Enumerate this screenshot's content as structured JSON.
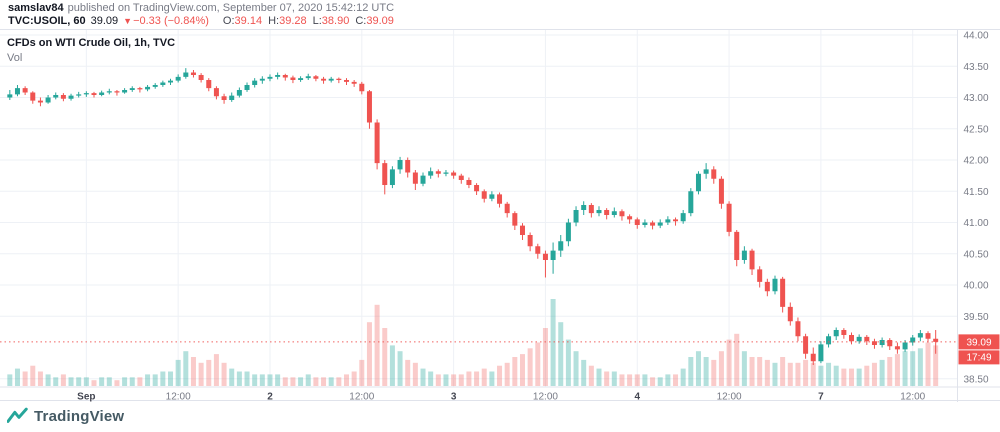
{
  "attribution": {
    "author": "samslav84",
    "published": "published on TradingView.com, September 07, 2020 15:42:12 UTC"
  },
  "quote": {
    "symbol": "TVC:USOIL, 60",
    "last": "39.09",
    "direction": "▼",
    "change": "−0.33 (−0.84%)",
    "ohlc": [
      {
        "label": "O:",
        "value": "39.14"
      },
      {
        "label": "H:",
        "value": "39.28"
      },
      {
        "label": "L:",
        "value": "38.90"
      },
      {
        "label": "C:",
        "value": "39.09"
      }
    ]
  },
  "footer": {
    "brand": "TradingView"
  },
  "colors": {
    "up": "#26a69a",
    "down": "#ef5350",
    "vol_up": "rgba(38,166,154,0.35)",
    "vol_down": "rgba(239,83,80,0.30)",
    "grid": "#eef1f6",
    "border": "#e0e3eb",
    "axis_text": "#787b86",
    "axis_text_major": "#434651",
    "badge": "#ef5350",
    "badge_text": "#ffffff",
    "current_line": "#ef5350",
    "brand_teal": "#26a69a"
  },
  "chart_data": {
    "type": "candlestick",
    "title": "CFDs on WTI Crude Oil, 1h, TVC",
    "volume_label": "Vol",
    "timeframe": "1h",
    "current_price": "39.09",
    "countdown": "17:49",
    "ylim": [
      38.37,
      44.08
    ],
    "price_axis": [
      "44.00",
      "43.50",
      "43.00",
      "42.50",
      "42.00",
      "41.50",
      "41.00",
      "40.50",
      "40.00",
      "39.50",
      "38.50"
    ],
    "x_ticks": [
      {
        "i": 10,
        "label": "Sep",
        "major": true
      },
      {
        "i": 22,
        "label": "12:00",
        "major": false
      },
      {
        "i": 34,
        "label": "2",
        "major": true
      },
      {
        "i": 46,
        "label": "12:00",
        "major": false
      },
      {
        "i": 58,
        "label": "3",
        "major": true
      },
      {
        "i": 70,
        "label": "12:00",
        "major": false
      },
      {
        "i": 82,
        "label": "4",
        "major": true
      },
      {
        "i": 94,
        "label": "12:00",
        "major": false
      },
      {
        "i": 106,
        "label": "7",
        "major": true
      },
      {
        "i": 118,
        "label": "12:00",
        "major": false
      }
    ],
    "candle_format": [
      "open",
      "high",
      "low",
      "close",
      "volume_rel"
    ],
    "candles": [
      [
        43.0,
        43.12,
        42.96,
        43.05,
        4
      ],
      [
        43.05,
        43.2,
        43.02,
        43.15,
        6
      ],
      [
        43.15,
        43.18,
        43.04,
        43.08,
        5
      ],
      [
        43.08,
        43.1,
        42.9,
        42.95,
        7
      ],
      [
        42.95,
        43.0,
        42.86,
        42.92,
        5
      ],
      [
        42.92,
        43.04,
        42.9,
        43.0,
        4
      ],
      [
        43.0,
        43.08,
        42.97,
        43.04,
        3
      ],
      [
        43.04,
        43.07,
        42.94,
        42.98,
        4
      ],
      [
        42.98,
        43.06,
        42.95,
        43.03,
        3
      ],
      [
        43.03,
        43.09,
        43.0,
        43.05,
        3
      ],
      [
        43.05,
        43.1,
        43.01,
        43.07,
        3
      ],
      [
        43.07,
        43.09,
        43.0,
        43.04,
        2
      ],
      [
        43.04,
        43.11,
        43.02,
        43.08,
        3
      ],
      [
        43.08,
        43.14,
        43.05,
        43.1,
        3
      ],
      [
        43.1,
        43.12,
        43.03,
        43.08,
        2
      ],
      [
        43.08,
        43.15,
        43.06,
        43.12,
        3
      ],
      [
        43.12,
        43.18,
        43.09,
        43.15,
        3
      ],
      [
        43.15,
        43.17,
        43.08,
        43.13,
        3
      ],
      [
        43.13,
        43.2,
        43.1,
        43.17,
        4
      ],
      [
        43.17,
        43.23,
        43.14,
        43.2,
        4
      ],
      [
        43.2,
        43.27,
        43.17,
        43.24,
        5
      ],
      [
        43.24,
        43.3,
        43.2,
        43.27,
        5
      ],
      [
        43.27,
        43.37,
        43.24,
        43.33,
        9
      ],
      [
        43.33,
        43.47,
        43.3,
        43.4,
        12
      ],
      [
        43.4,
        43.44,
        43.32,
        43.36,
        10
      ],
      [
        43.36,
        43.39,
        43.24,
        43.28,
        8
      ],
      [
        43.28,
        43.31,
        43.1,
        43.15,
        9
      ],
      [
        43.15,
        43.18,
        42.97,
        43.02,
        11
      ],
      [
        43.02,
        43.06,
        42.9,
        42.96,
        8
      ],
      [
        42.96,
        43.08,
        42.93,
        43.03,
        6
      ],
      [
        43.03,
        43.16,
        43.0,
        43.12,
        5
      ],
      [
        43.12,
        43.24,
        43.09,
        43.2,
        5
      ],
      [
        43.2,
        43.31,
        43.16,
        43.27,
        4
      ],
      [
        43.27,
        43.34,
        43.22,
        43.3,
        4
      ],
      [
        43.3,
        43.37,
        43.26,
        43.33,
        4
      ],
      [
        43.33,
        43.4,
        43.29,
        43.36,
        4
      ],
      [
        43.36,
        43.38,
        43.27,
        43.32,
        3
      ],
      [
        43.32,
        43.35,
        43.23,
        43.28,
        3
      ],
      [
        43.28,
        43.34,
        43.25,
        43.31,
        3
      ],
      [
        43.31,
        43.38,
        43.28,
        43.34,
        4
      ],
      [
        43.34,
        43.36,
        43.26,
        43.3,
        3
      ],
      [
        43.3,
        43.33,
        43.22,
        43.27,
        3
      ],
      [
        43.27,
        43.33,
        43.24,
        43.3,
        3
      ],
      [
        43.3,
        43.32,
        43.23,
        43.28,
        3
      ],
      [
        43.28,
        43.31,
        43.2,
        43.25,
        4
      ],
      [
        43.25,
        43.28,
        43.17,
        43.22,
        5
      ],
      [
        43.22,
        43.25,
        43.05,
        43.1,
        9
      ],
      [
        43.1,
        43.12,
        42.5,
        42.6,
        22
      ],
      [
        42.6,
        42.65,
        41.85,
        41.95,
        28
      ],
      [
        41.95,
        42.0,
        41.45,
        41.6,
        20
      ],
      [
        41.6,
        41.9,
        41.55,
        41.85,
        14
      ],
      [
        41.85,
        42.05,
        41.78,
        42.0,
        12
      ],
      [
        42.0,
        42.04,
        41.72,
        41.8,
        9
      ],
      [
        41.8,
        41.84,
        41.52,
        41.62,
        8
      ],
      [
        41.62,
        41.8,
        41.58,
        41.75,
        6
      ],
      [
        41.75,
        41.88,
        41.7,
        41.82,
        5
      ],
      [
        41.82,
        41.85,
        41.72,
        41.78,
        4
      ],
      [
        41.78,
        41.84,
        41.74,
        41.8,
        4
      ],
      [
        41.8,
        41.83,
        41.7,
        41.75,
        4
      ],
      [
        41.75,
        41.78,
        41.62,
        41.68,
        4
      ],
      [
        41.68,
        41.72,
        41.55,
        41.6,
        5
      ],
      [
        41.6,
        41.63,
        41.44,
        41.5,
        5
      ],
      [
        41.5,
        41.53,
        41.32,
        41.38,
        6
      ],
      [
        41.38,
        41.5,
        41.34,
        41.45,
        5
      ],
      [
        41.45,
        41.48,
        41.24,
        41.3,
        7
      ],
      [
        41.3,
        41.33,
        41.08,
        41.15,
        8
      ],
      [
        41.15,
        41.18,
        40.88,
        40.95,
        10
      ],
      [
        40.95,
        40.99,
        40.72,
        40.8,
        11
      ],
      [
        40.8,
        40.84,
        40.54,
        40.62,
        13
      ],
      [
        40.62,
        40.66,
        40.42,
        40.5,
        15
      ],
      [
        40.5,
        40.55,
        40.12,
        40.4,
        20
      ],
      [
        40.4,
        40.68,
        40.18,
        40.55,
        30
      ],
      [
        40.55,
        40.8,
        40.45,
        40.7,
        22
      ],
      [
        40.7,
        41.06,
        40.62,
        41.0,
        16
      ],
      [
        41.0,
        41.26,
        40.94,
        41.2,
        12
      ],
      [
        41.2,
        41.34,
        41.12,
        41.28,
        9
      ],
      [
        41.28,
        41.31,
        41.08,
        41.15,
        7
      ],
      [
        41.15,
        41.26,
        41.1,
        41.2,
        6
      ],
      [
        41.2,
        41.23,
        41.05,
        41.12,
        5
      ],
      [
        41.12,
        41.24,
        41.08,
        41.18,
        5
      ],
      [
        41.18,
        41.21,
        41.03,
        41.1,
        4
      ],
      [
        41.1,
        41.13,
        40.98,
        41.05,
        4
      ],
      [
        41.05,
        41.08,
        40.9,
        40.96,
        4
      ],
      [
        40.96,
        41.05,
        40.92,
        41.0,
        4
      ],
      [
        41.0,
        41.03,
        40.89,
        40.95,
        3
      ],
      [
        40.95,
        41.05,
        40.91,
        41.0,
        3
      ],
      [
        41.0,
        41.1,
        40.96,
        41.05,
        4
      ],
      [
        41.05,
        41.08,
        40.95,
        41.02,
        4
      ],
      [
        41.02,
        41.2,
        40.98,
        41.15,
        6
      ],
      [
        41.15,
        41.55,
        41.1,
        41.5,
        10
      ],
      [
        41.5,
        41.82,
        41.45,
        41.78,
        12
      ],
      [
        41.78,
        41.95,
        41.7,
        41.85,
        10
      ],
      [
        41.85,
        41.9,
        41.62,
        41.7,
        9
      ],
      [
        41.7,
        41.74,
        41.22,
        41.3,
        12
      ],
      [
        41.3,
        41.34,
        40.78,
        40.85,
        16
      ],
      [
        40.85,
        40.88,
        40.3,
        40.4,
        18
      ],
      [
        40.4,
        40.62,
        40.34,
        40.55,
        12
      ],
      [
        40.55,
        40.58,
        40.16,
        40.25,
        10
      ],
      [
        40.25,
        40.3,
        39.96,
        40.05,
        10
      ],
      [
        40.05,
        40.1,
        39.82,
        39.9,
        9
      ],
      [
        39.9,
        40.15,
        39.85,
        40.1,
        8
      ],
      [
        40.1,
        40.13,
        39.56,
        39.65,
        10
      ],
      [
        39.65,
        39.72,
        39.35,
        39.42,
        8
      ],
      [
        39.42,
        39.48,
        39.1,
        39.18,
        8
      ],
      [
        39.18,
        39.22,
        38.82,
        38.9,
        9
      ],
      [
        38.9,
        39.0,
        38.72,
        38.78,
        8
      ],
      [
        38.78,
        39.1,
        38.75,
        39.05,
        7
      ],
      [
        39.05,
        39.22,
        39.0,
        39.18,
        8
      ],
      [
        39.18,
        39.32,
        39.12,
        39.28,
        7
      ],
      [
        39.28,
        39.31,
        39.14,
        39.2,
        6
      ],
      [
        39.2,
        39.24,
        39.05,
        39.1,
        6
      ],
      [
        39.1,
        39.21,
        39.06,
        39.17,
        6
      ],
      [
        39.17,
        39.2,
        39.04,
        39.1,
        7
      ],
      [
        39.1,
        39.14,
        38.98,
        39.04,
        8
      ],
      [
        39.04,
        39.16,
        39.0,
        39.12,
        9
      ],
      [
        39.12,
        39.15,
        38.96,
        39.02,
        10
      ],
      [
        39.02,
        39.08,
        38.9,
        38.97,
        11
      ],
      [
        38.97,
        39.12,
        38.93,
        39.08,
        12
      ],
      [
        39.08,
        39.2,
        39.03,
        39.16,
        12
      ],
      [
        39.16,
        39.28,
        39.1,
        39.23,
        13
      ],
      [
        39.23,
        39.26,
        39.08,
        39.14,
        15
      ],
      [
        39.14,
        39.28,
        38.9,
        39.09,
        14
      ]
    ]
  }
}
